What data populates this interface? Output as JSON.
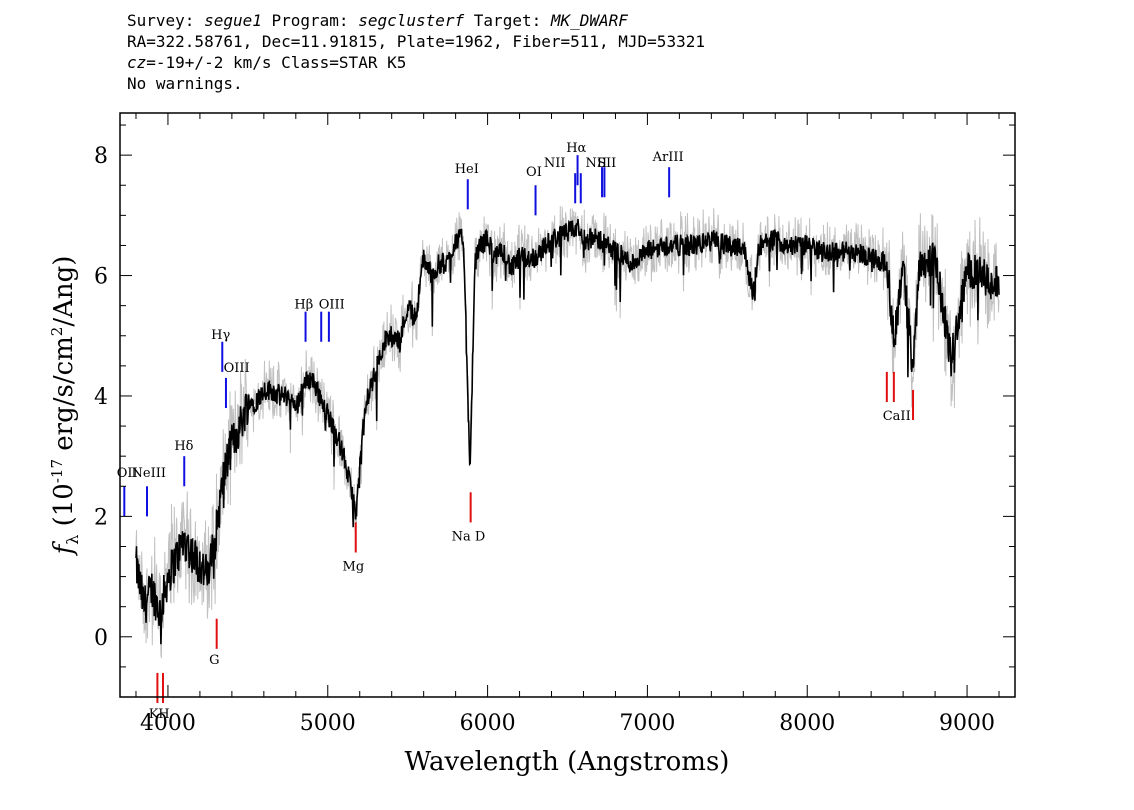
{
  "header": {
    "survey_label": "Survey: ",
    "survey": "segue1",
    "program_label": " Program: ",
    "program": "segclusterf",
    "target_label": " Target: ",
    "target": "MK_DWARF",
    "line2": "RA=322.58761, Dec=11.91815, Plate=1962, Fiber=511, MJD=53321",
    "cz_label": "cz",
    "cz_value": "=-19+/-2",
    "cz_rest": " km/s Class=STAR K5",
    "line4": "No warnings."
  },
  "chart_data": {
    "type": "line",
    "xlabel": "Wavelength (Angstroms)",
    "ylabel": "f_λ (10^-17 erg/s/cm^2/Ang)",
    "xlim": [
      3700,
      9300
    ],
    "ylim": [
      -1,
      8.7
    ],
    "xticks": [
      4000,
      5000,
      6000,
      7000,
      8000,
      9000
    ],
    "yticks": [
      0,
      2,
      4,
      6,
      8
    ],
    "series": [
      {
        "color": "#000000",
        "error_color": "#c0c0c0",
        "x": [
          3800,
          3850,
          3900,
          3950,
          4000,
          4050,
          4100,
          4150,
          4200,
          4250,
          4300,
          4350,
          4400,
          4450,
          4500,
          4550,
          4600,
          4650,
          4700,
          4750,
          4800,
          4850,
          4900,
          4950,
          5000,
          5050,
          5100,
          5150,
          5180,
          5200,
          5250,
          5300,
          5350,
          5400,
          5450,
          5500,
          5550,
          5600,
          5650,
          5700,
          5750,
          5800,
          5850,
          5890,
          5920,
          5950,
          6000,
          6050,
          6100,
          6150,
          6200,
          6300,
          6400,
          6500,
          6563,
          6600,
          6700,
          6800,
          6900,
          7000,
          7100,
          7200,
          7300,
          7400,
          7500,
          7600,
          7660,
          7700,
          7800,
          7900,
          8000,
          8100,
          8200,
          8300,
          8400,
          8500,
          8542,
          8600,
          8662,
          8700,
          8800,
          8900,
          9000,
          9100,
          9150,
          9200
        ],
        "y": [
          1.2,
          0.5,
          0.8,
          0.4,
          1.0,
          1.3,
          1.6,
          1.4,
          1.2,
          1.0,
          1.7,
          2.7,
          3.2,
          3.5,
          3.9,
          3.9,
          4.1,
          4.1,
          4.0,
          4.0,
          3.8,
          4.2,
          4.3,
          4.0,
          3.7,
          3.4,
          3.0,
          2.4,
          2.0,
          3.0,
          4.0,
          4.4,
          4.9,
          5.0,
          4.9,
          5.5,
          5.3,
          6.3,
          6.0,
          6.2,
          6.2,
          6.6,
          6.6,
          2.6,
          6.2,
          6.5,
          6.6,
          6.3,
          6.4,
          6.1,
          6.3,
          6.3,
          6.6,
          6.7,
          6.8,
          6.6,
          6.6,
          6.4,
          6.2,
          6.4,
          6.5,
          6.5,
          6.5,
          6.6,
          6.5,
          6.5,
          5.7,
          6.5,
          6.6,
          6.5,
          6.5,
          6.4,
          6.4,
          6.4,
          6.3,
          6.2,
          4.9,
          6.2,
          4.4,
          6.2,
          6.3,
          4.6,
          6.1,
          6.0,
          5.8,
          5.9
        ]
      }
    ],
    "emission_lines": [
      {
        "label": "OII",
        "x": 3727,
        "y0": 2.0,
        "y1": 2.5
      },
      {
        "label": "NeIII",
        "x": 3869,
        "y0": 2.0,
        "y1": 2.5
      },
      {
        "label": "Hδ",
        "x": 4102,
        "y0": 2.5,
        "y1": 3.0
      },
      {
        "label": "Hγ",
        "x": 4340,
        "y0": 4.4,
        "y1": 4.9
      },
      {
        "label": "OIII",
        "x": 4363,
        "y0": 3.8,
        "y1": 4.3
      },
      {
        "label": "Hβ",
        "x": 4861,
        "y0": 4.9,
        "y1": 5.4
      },
      {
        "label": "OIII",
        "x": 4959,
        "y0": 4.9,
        "y1": 5.4
      },
      {
        "label": "OIII",
        "x": 5007,
        "y0": 4.9,
        "y1": 5.4
      },
      {
        "label": "HeI",
        "x": 5876,
        "y0": 7.1,
        "y1": 7.6
      },
      {
        "label": "OI",
        "x": 6300,
        "y0": 7.0,
        "y1": 7.5
      },
      {
        "label": "NII",
        "x": 6548,
        "y0": 7.2,
        "y1": 7.7
      },
      {
        "label": "Hα",
        "x": 6563,
        "y0": 7.5,
        "y1": 8.0
      },
      {
        "label": "NII",
        "x": 6583,
        "y0": 7.2,
        "y1": 7.7
      },
      {
        "label": "SII",
        "x": 6716,
        "y0": 7.3,
        "y1": 7.8
      },
      {
        "label": "SII",
        "x": 6731,
        "y0": 7.3,
        "y1": 7.8
      },
      {
        "label": "ArIII",
        "x": 7136,
        "y0": 7.3,
        "y1": 7.8
      }
    ],
    "absorption_lines": [
      {
        "label": "K",
        "x": 3934,
        "y0": -0.6,
        "y1": -1.1
      },
      {
        "label": "H",
        "x": 3969,
        "y0": -0.6,
        "y1": -1.1
      },
      {
        "label": "G",
        "x": 4305,
        "y0": 0.3,
        "y1": -0.2
      },
      {
        "label": "Mg",
        "x": 5175,
        "y0": 1.9,
        "y1": 1.4
      },
      {
        "label": "Na D",
        "x": 5894,
        "y0": 2.4,
        "y1": 1.9
      },
      {
        "label": "",
        "x": 8498,
        "y0": 4.4,
        "y1": 3.9
      },
      {
        "label": "CaII",
        "x": 8542,
        "y0": 4.4,
        "y1": 3.9
      },
      {
        "label": "",
        "x": 8662,
        "y0": 4.1,
        "y1": 3.6
      }
    ],
    "line_label_texts": [
      {
        "text": "OII",
        "x": 3745,
        "y": 2.65
      },
      {
        "text": "NeIII",
        "x": 3880,
        "y": 2.65
      },
      {
        "text": "Hδ",
        "x": 4100,
        "y": 3.1
      },
      {
        "text": "Hγ",
        "x": 4330,
        "y": 4.95
      },
      {
        "text": "OIII",
        "x": 4430,
        "y": 4.4
      },
      {
        "text": "Hβ",
        "x": 4850,
        "y": 5.45
      },
      {
        "text": "OIII",
        "x": 5025,
        "y": 5.45
      },
      {
        "text": "HeI",
        "x": 5870,
        "y": 7.7
      },
      {
        "text": "OI",
        "x": 6290,
        "y": 7.65
      },
      {
        "text": "NII",
        "x": 6420,
        "y": 7.8
      },
      {
        "text": "Hα",
        "x": 6555,
        "y": 8.05
      },
      {
        "text": "NII",
        "x": 6680,
        "y": 7.8
      },
      {
        "text": "SII",
        "x": 6745,
        "y": 7.8
      },
      {
        "text": "ArIII",
        "x": 7130,
        "y": 7.9
      },
      {
        "text": "K",
        "x": 3910,
        "y": -1.35
      },
      {
        "text": "H",
        "x": 3975,
        "y": -1.35
      },
      {
        "text": "G",
        "x": 4290,
        "y": -0.45
      },
      {
        "text": "Mg",
        "x": 5160,
        "y": 1.1
      },
      {
        "text": "Na D",
        "x": 5880,
        "y": 1.6
      },
      {
        "text": "CaII",
        "x": 8560,
        "y": 3.6
      }
    ]
  }
}
